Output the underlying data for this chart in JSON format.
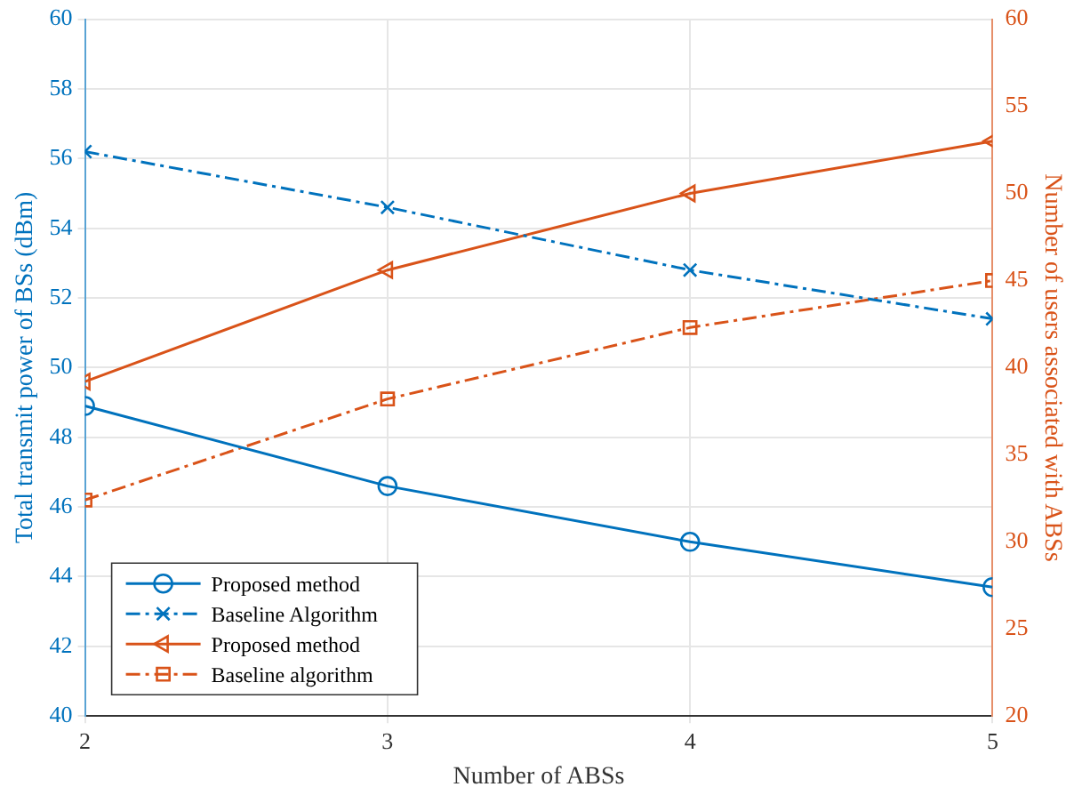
{
  "chart_data": {
    "type": "line",
    "xlabel": "Number of ABSs",
    "ylabel": "Total transmit power of BSs (dBm)",
    "y2label": "Number of users associated with ABSs",
    "x": [
      2,
      3,
      4,
      5
    ],
    "xlim": [
      2,
      5
    ],
    "xticks": [
      2,
      3,
      4,
      5
    ],
    "ylim": [
      40,
      60
    ],
    "yticks": [
      40,
      42,
      44,
      46,
      48,
      50,
      52,
      54,
      56,
      58,
      60
    ],
    "y2lim": [
      20,
      60
    ],
    "y2ticks": [
      20,
      25,
      30,
      35,
      40,
      45,
      50,
      55,
      60
    ],
    "grid": true,
    "legend": "bottom left",
    "series": [
      {
        "name": "Proposed method",
        "color": "#0072bd",
        "values": [
          48.9,
          46.6,
          45.0,
          43.7
        ],
        "marker": "circle",
        "line_style": "solid"
      },
      {
        "name": "Baseline Algorithm",
        "color": "#0072bd",
        "values": [
          56.2,
          54.6,
          52.8,
          51.4
        ],
        "marker": "cross",
        "line_style": "dashdot"
      },
      {
        "name": "Proposed method",
        "color": "#d95319",
        "values": [
          39.2,
          45.6,
          50.0,
          53.0
        ],
        "marker": "triangle",
        "line_style": "solid",
        "axis": "y2"
      },
      {
        "name": "Baseline algorithm",
        "color": "#d95319",
        "values": [
          32.4,
          38.2,
          42.3,
          45.0
        ],
        "marker": "square",
        "line_style": "dashdot",
        "axis": "y2"
      }
    ]
  }
}
